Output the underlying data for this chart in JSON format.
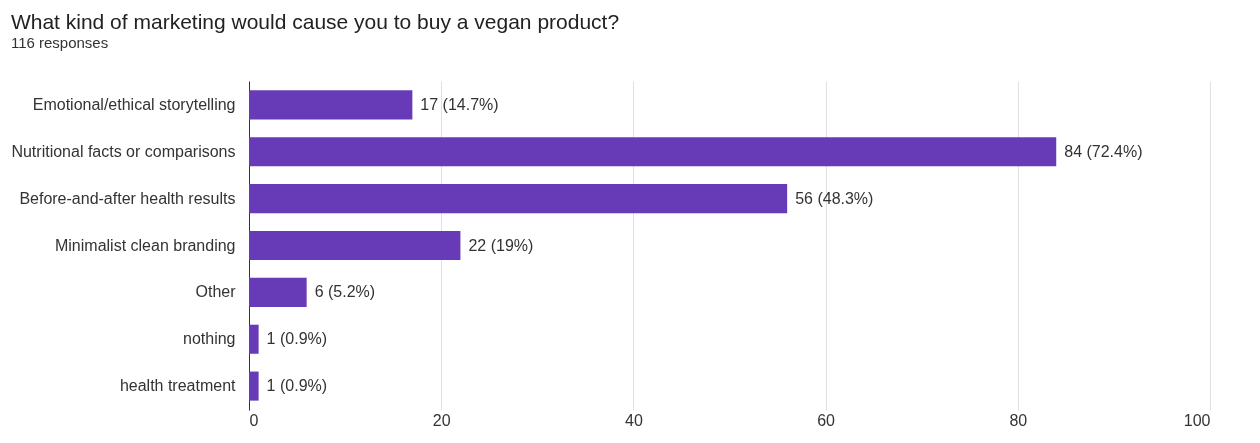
{
  "chart_data": {
    "type": "bar",
    "orientation": "horizontal",
    "title": "What kind of marketing would cause you to buy a vegan product?",
    "subtitle": "116 responses",
    "categories": [
      "Emotional/ethical storytelling",
      "Nutritional facts or comparisons",
      "Before-and-after health results",
      "Minimalist clean branding",
      "Other",
      "nothing",
      "health treatment"
    ],
    "values": [
      17,
      84,
      56,
      22,
      6,
      1,
      1
    ],
    "value_labels": [
      "17 (14.7%)",
      "84 (72.4%)",
      "56 (48.3%)",
      "22 (19%)",
      "6 (5.2%)",
      "1 (0.9%)",
      "1 (0.9%)"
    ],
    "color": "#673ab7",
    "xlim": [
      0,
      100
    ],
    "xticks": [
      0,
      20,
      40,
      60,
      80,
      100
    ],
    "grid": "x"
  }
}
